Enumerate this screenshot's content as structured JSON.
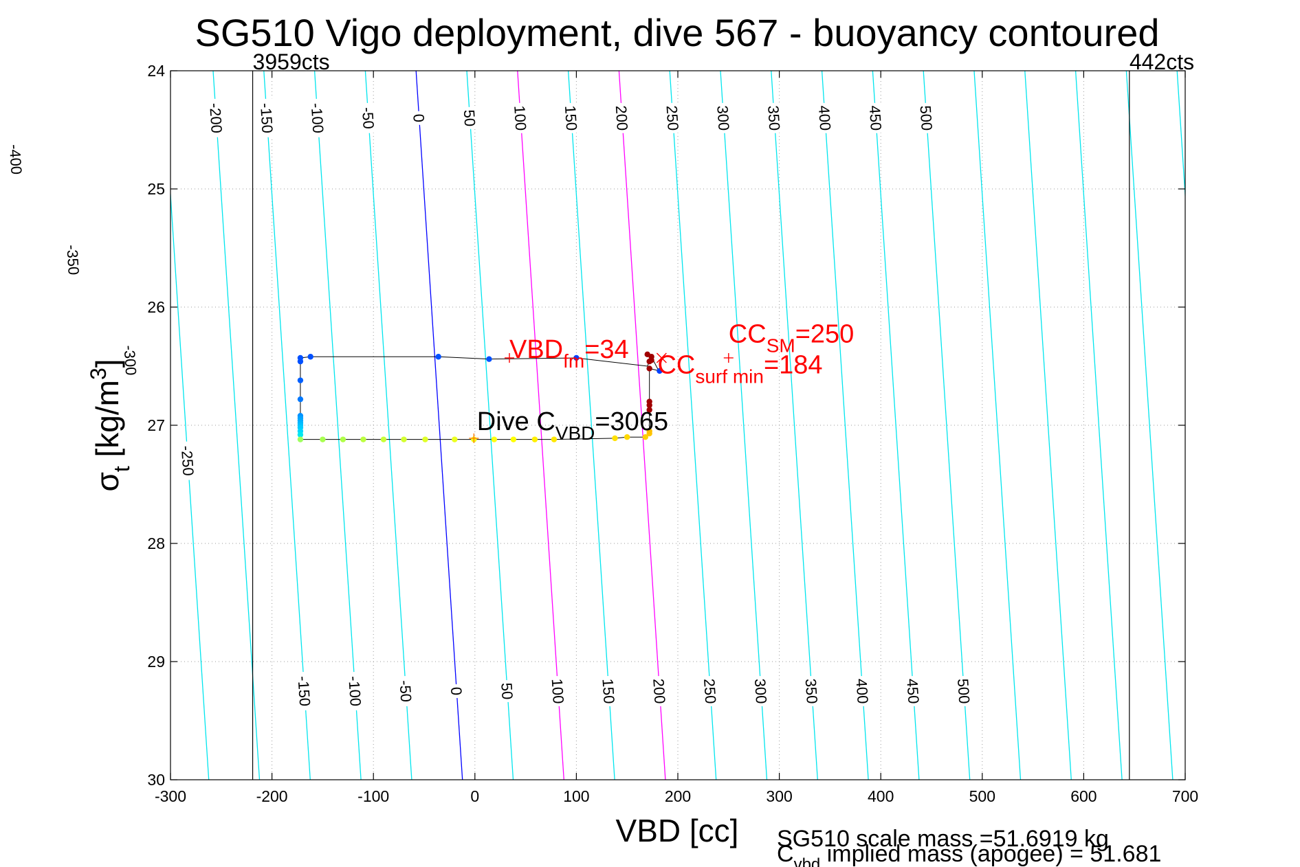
{
  "chart_data": {
    "type": "scatter",
    "title": "SG510 Vigo deployment, dive 567 - buoyancy contoured",
    "xlabel": "VBD [cc]",
    "ylabel": {
      "base": "σ",
      "sub": "t",
      "main": " [kg/m",
      "sup": "3",
      "end": "]"
    },
    "xlim": [
      -300,
      700
    ],
    "ylim": [
      24,
      30
    ],
    "y_reversed": true,
    "grid": true,
    "x_ticks": [
      -300,
      -200,
      -100,
      0,
      100,
      200,
      300,
      400,
      500,
      600,
      700
    ],
    "y_ticks": [
      24,
      25,
      26,
      27,
      28,
      29,
      30
    ],
    "vbd_limit_lines": [
      {
        "x": -219,
        "label": "3959cts"
      },
      {
        "x": 645,
        "label": "442cts"
      }
    ],
    "buoyancy_contour_slope": 0.0074,
    "contours": [
      {
        "level": -400,
        "offset": -458,
        "color": "#00e5ee",
        "top_label": "-400"
      },
      {
        "level": -350,
        "offset": -408,
        "color": "#00e5ee",
        "top_label": "-350"
      },
      {
        "level": -300,
        "offset": -358,
        "color": "#00e5ee",
        "top_label": "-300"
      },
      {
        "level": -250,
        "offset": -308,
        "color": "#00e5ee",
        "top_label": "-250"
      },
      {
        "level": -200,
        "offset": -258,
        "color": "#00e5ee",
        "top_label": "-200"
      },
      {
        "level": -150,
        "offset": -208,
        "color": "#00e5ee",
        "top_label": "-150",
        "bottom_label": "-150"
      },
      {
        "level": -100,
        "offset": -158,
        "color": "#00e5ee",
        "top_label": "-100",
        "bottom_label": "-100"
      },
      {
        "level": -50,
        "offset": -108,
        "color": "#00e5ee",
        "top_label": "-50",
        "bottom_label": "-50"
      },
      {
        "level": 0,
        "offset": -58,
        "color": "#0000ff",
        "top_label": "0",
        "bottom_label": "0"
      },
      {
        "level": 50,
        "offset": -8,
        "color": "#00e5ee",
        "top_label": "50",
        "bottom_label": "50"
      },
      {
        "level": 100,
        "offset": 42,
        "color": "#ff00ff",
        "top_label": "100",
        "bottom_label": "100"
      },
      {
        "level": 150,
        "offset": 92,
        "color": "#00e5ee",
        "top_label": "150",
        "bottom_label": "150"
      },
      {
        "level": 200,
        "offset": 142,
        "color": "#ff00ff",
        "top_label": "200",
        "bottom_label": "200"
      },
      {
        "level": 250,
        "offset": 192,
        "color": "#00e5ee",
        "top_label": "250",
        "bottom_label": "250"
      },
      {
        "level": 300,
        "offset": 242,
        "color": "#00e5ee",
        "top_label": "300",
        "bottom_label": "300"
      },
      {
        "level": 350,
        "offset": 292,
        "color": "#00e5ee",
        "top_label": "350",
        "bottom_label": "350"
      },
      {
        "level": 400,
        "offset": 342,
        "color": "#00e5ee",
        "top_label": "400",
        "bottom_label": "400"
      },
      {
        "level": 450,
        "offset": 392,
        "color": "#00e5ee",
        "top_label": "450",
        "bottom_label": "450"
      },
      {
        "level": 500,
        "offset": 442,
        "color": "#00e5ee",
        "top_label": "500",
        "bottom_label": "500"
      },
      {
        "level": 550,
        "offset": 492,
        "color": "#00e5ee"
      },
      {
        "level": 600,
        "offset": 542,
        "color": "#00e5ee"
      },
      {
        "level": 650,
        "offset": 592,
        "color": "#00e5ee"
      },
      {
        "level": 700,
        "offset": 642,
        "color": "#00e5ee"
      },
      {
        "level": 750,
        "offset": 692,
        "color": "#00e5ee"
      }
    ],
    "contour_label_rows": {
      "top_sigma": 24.4,
      "bottom_sigma": 29.25,
      "left_sigma_start": 24.75,
      "left_sigma_step": 0.85
    },
    "dive_trace": [
      [
        -172,
        26.46
      ],
      [
        -172,
        26.43
      ],
      [
        -162,
        26.42
      ],
      [
        -36,
        26.42
      ],
      [
        14,
        26.44
      ],
      [
        100,
        26.43
      ],
      [
        170,
        26.5
      ],
      [
        172,
        26.46
      ],
      [
        174,
        26.45
      ],
      [
        174,
        26.42
      ],
      [
        180,
        26.52
      ],
      [
        182,
        26.54
      ],
      [
        172,
        26.52
      ],
      [
        172,
        26.75
      ],
      [
        172,
        26.83
      ],
      [
        172,
        26.87
      ],
      [
        172,
        27.02
      ],
      [
        172,
        27.06
      ],
      [
        168,
        27.1
      ],
      [
        150,
        27.1
      ],
      [
        138,
        27.11
      ],
      [
        78,
        27.12
      ],
      [
        59,
        27.12
      ],
      [
        38,
        27.12
      ],
      [
        19,
        27.12
      ],
      [
        -1,
        27.12
      ],
      [
        -20,
        27.12
      ],
      [
        -49,
        27.12
      ],
      [
        -70,
        27.12
      ],
      [
        -90,
        27.12
      ],
      [
        -110,
        27.12
      ],
      [
        -130,
        27.12
      ],
      [
        -150,
        27.12
      ],
      [
        -172,
        27.12
      ],
      [
        -172,
        27.08
      ],
      [
        -172,
        26.92
      ],
      [
        -172,
        26.78
      ],
      [
        -172,
        26.62
      ],
      [
        -172,
        26.47
      ]
    ],
    "dive_points": [
      {
        "x": -172,
        "y": 26.43,
        "color": "#0050ff"
      },
      {
        "x": -172,
        "y": 26.46,
        "color": "#0050ff"
      },
      {
        "x": -162,
        "y": 26.42,
        "color": "#0050ff"
      },
      {
        "x": -36,
        "y": 26.42,
        "color": "#0050ff"
      },
      {
        "x": 14,
        "y": 26.44,
        "color": "#0050ff"
      },
      {
        "x": 100,
        "y": 26.43,
        "color": "#0040ff"
      },
      {
        "x": 182,
        "y": 26.54,
        "color": "#0040ff"
      },
      {
        "x": -172,
        "y": 26.62,
        "color": "#0060ff"
      },
      {
        "x": -172,
        "y": 26.78,
        "color": "#0078ff"
      },
      {
        "x": -172,
        "y": 26.92,
        "color": "#0090ff"
      },
      {
        "x": -172,
        "y": 26.94,
        "color": "#00a0ff"
      },
      {
        "x": -172,
        "y": 26.96,
        "color": "#00a8ff"
      },
      {
        "x": -172,
        "y": 26.98,
        "color": "#00b4ff"
      },
      {
        "x": -172,
        "y": 27.0,
        "color": "#00c0ff"
      },
      {
        "x": -172,
        "y": 27.02,
        "color": "#00ccff"
      },
      {
        "x": -172,
        "y": 27.05,
        "color": "#00d8ff"
      },
      {
        "x": -172,
        "y": 27.08,
        "color": "#00e8f0"
      },
      {
        "x": -172,
        "y": 27.12,
        "color": "#9fff60"
      },
      {
        "x": -150,
        "y": 27.12,
        "color": "#a8ff50"
      },
      {
        "x": -130,
        "y": 27.12,
        "color": "#b0ff48"
      },
      {
        "x": -110,
        "y": 27.12,
        "color": "#bcff40"
      },
      {
        "x": -90,
        "y": 27.12,
        "color": "#c8ff38"
      },
      {
        "x": -70,
        "y": 27.12,
        "color": "#d4ff30"
      },
      {
        "x": -49,
        "y": 27.12,
        "color": "#e0ff28"
      },
      {
        "x": -20,
        "y": 27.12,
        "color": "#ecff20"
      },
      {
        "x": -1,
        "y": 27.12,
        "color": "#f4ff18"
      },
      {
        "x": 19,
        "y": 27.12,
        "color": "#ffff10"
      },
      {
        "x": 38,
        "y": 27.12,
        "color": "#ffff00"
      },
      {
        "x": 59,
        "y": 27.12,
        "color": "#fff000"
      },
      {
        "x": 78,
        "y": 27.12,
        "color": "#ffe800"
      },
      {
        "x": 138,
        "y": 27.11,
        "color": "#ffe000"
      },
      {
        "x": 150,
        "y": 27.1,
        "color": "#ffd800"
      },
      {
        "x": 168,
        "y": 27.1,
        "color": "#ffd000"
      },
      {
        "x": 172,
        "y": 27.07,
        "color": "#ffc800"
      },
      {
        "x": 172,
        "y": 27.05,
        "color": "#ffc000"
      },
      {
        "x": 172,
        "y": 26.87,
        "color": "#a00000"
      },
      {
        "x": 172,
        "y": 26.83,
        "color": "#a00000"
      },
      {
        "x": 172,
        "y": 26.8,
        "color": "#a00000"
      },
      {
        "x": 172,
        "y": 26.52,
        "color": "#a00000"
      },
      {
        "x": 172,
        "y": 26.46,
        "color": "#a00000"
      },
      {
        "x": 174,
        "y": 26.45,
        "color": "#a00000"
      },
      {
        "x": 170,
        "y": 26.4,
        "color": "#a00000"
      },
      {
        "x": 174,
        "y": 26.42,
        "color": "#a00000"
      }
    ],
    "markers": [
      {
        "type": "plus",
        "x": 34,
        "y": 26.43,
        "color": "#ff0000"
      },
      {
        "type": "cross",
        "x": 184,
        "y": 26.43,
        "color": "#ff0000"
      },
      {
        "type": "plus",
        "x": 250,
        "y": 26.43,
        "color": "#ff0000"
      },
      {
        "type": "plus",
        "x": -1,
        "y": 27.11,
        "color": "#ff8000"
      }
    ],
    "annotations": [
      {
        "name": "vbd-fm-annotation",
        "x": 34,
        "y": 26.43,
        "base": "VBD",
        "sub": "fm",
        "tail": "=34",
        "color": "#ff0000"
      },
      {
        "name": "cc-surf-min-annotation",
        "x": 180,
        "y": 26.56,
        "base": "CC",
        "sub": "surf min",
        "tail": "=184",
        "color": "#ff0000"
      },
      {
        "name": "cc-sm-annotation",
        "x": 250,
        "y": 26.3,
        "base": "CC",
        "sub": "SM",
        "tail": "=250",
        "color": "#ff0000"
      },
      {
        "name": "dive-cvbd-annotation",
        "x": 2,
        "y": 27.04,
        "base": "Dive C",
        "sub": "VBD",
        "tail": "=3065",
        "color": "#000000"
      }
    ],
    "footer": {
      "scale_mass": "SG510 scale mass =51.6919 kg",
      "implied_base": "C",
      "implied_sub": "vbd",
      "implied_tail": " implied mass (apogee) = 51.681"
    }
  }
}
